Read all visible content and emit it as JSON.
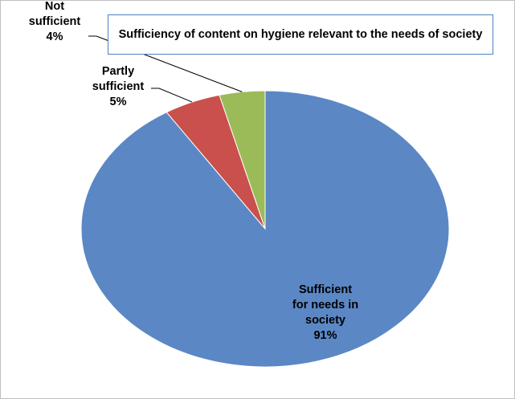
{
  "chart_data": {
    "type": "pie",
    "title": "Sufficiency of content on hygiene relevant to the needs of society",
    "slices": [
      {
        "label_lines": [
          "Sufficient",
          "for needs in",
          "society"
        ],
        "percent_label": "91%",
        "value": 91,
        "color": "#5b87c5"
      },
      {
        "label_lines": [
          "Partly",
          "sufficient"
        ],
        "percent_label": "5%",
        "value": 5,
        "color": "#c9504c"
      },
      {
        "label_lines": [
          "Not",
          "sufficient"
        ],
        "percent_label": "4%",
        "value": 4,
        "color": "#9bbb59"
      }
    ],
    "legend": "none"
  }
}
